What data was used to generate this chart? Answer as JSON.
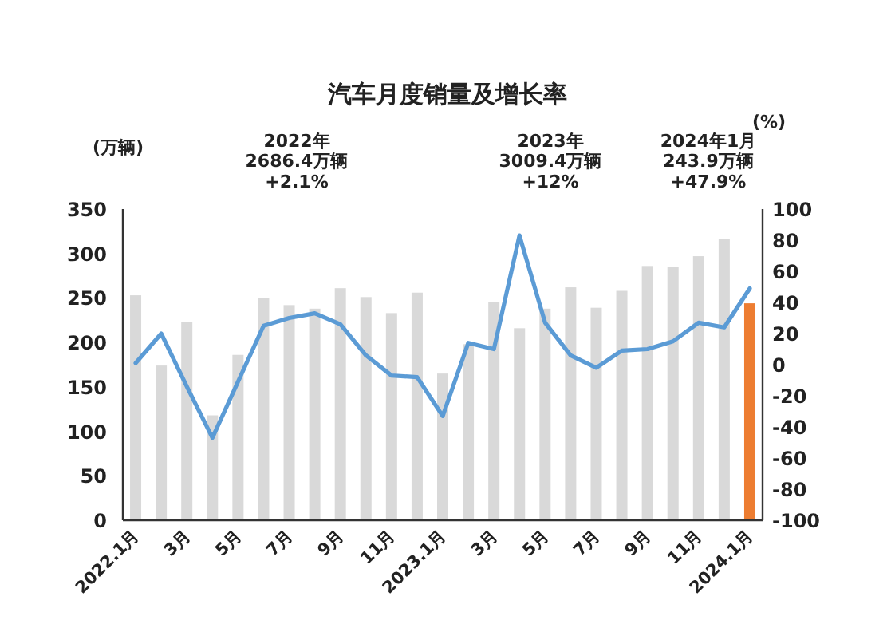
{
  "chart_data": {
    "type": "bar",
    "title": "汽车月度销量及增长率",
    "ylabel": "(万辆)",
    "y2label": "(%)",
    "categories": [
      "2022.1月",
      null,
      "3月",
      null,
      "5月",
      null,
      "7月",
      null,
      "9月",
      null,
      "11月",
      null,
      "2023.1月",
      null,
      "3月",
      null,
      "5月",
      null,
      "7月",
      null,
      "9月",
      null,
      "11月",
      null,
      "2024.1月"
    ],
    "series": [
      {
        "colors": [
          "#d9d9d9",
          "#d9d9d9",
          "#d9d9d9",
          "#d9d9d9",
          "#d9d9d9",
          "#d9d9d9",
          "#d9d9d9",
          "#d9d9d9",
          "#d9d9d9",
          "#d9d9d9",
          "#d9d9d9",
          "#d9d9d9",
          "#d9d9d9",
          "#d9d9d9",
          "#d9d9d9",
          "#d9d9d9",
          "#d9d9d9",
          "#d9d9d9",
          "#d9d9d9",
          "#d9d9d9",
          "#d9d9d9",
          "#d9d9d9",
          "#d9d9d9",
          "#d9d9d9",
          "#ed7d31"
        ],
        "values": [
          253,
          174,
          223,
          118,
          186,
          250,
          242,
          238,
          261,
          251,
          233,
          256,
          165,
          198,
          245,
          216,
          238,
          262,
          239,
          258,
          286,
          285,
          297,
          316,
          244
        ]
      },
      {
        "type": "line",
        "axis": "y2",
        "color": "#5b9bd5",
        "values": [
          1,
          20,
          -14,
          -47,
          -11,
          25,
          30,
          33,
          26,
          6,
          -7,
          -8,
          -33,
          14,
          10,
          83,
          27,
          6,
          -2,
          9,
          10,
          15,
          27,
          24,
          49
        ]
      }
    ],
    "ylim": [
      0,
      350
    ],
    "yticks": [
      0,
      50,
      100,
      150,
      200,
      250,
      300,
      350
    ],
    "y2lim": [
      -100,
      100
    ],
    "y2ticks": [
      -100,
      -80,
      -60,
      -40,
      -20,
      0,
      20,
      40,
      60,
      80,
      100
    ],
    "annotations": [
      "2022年\n2686.4万辆\n+2.1%",
      "2023年\n3009.4万辆\n+12%",
      "2024年1月\n243.9万辆\n+47.9%"
    ],
    "grid": false
  }
}
